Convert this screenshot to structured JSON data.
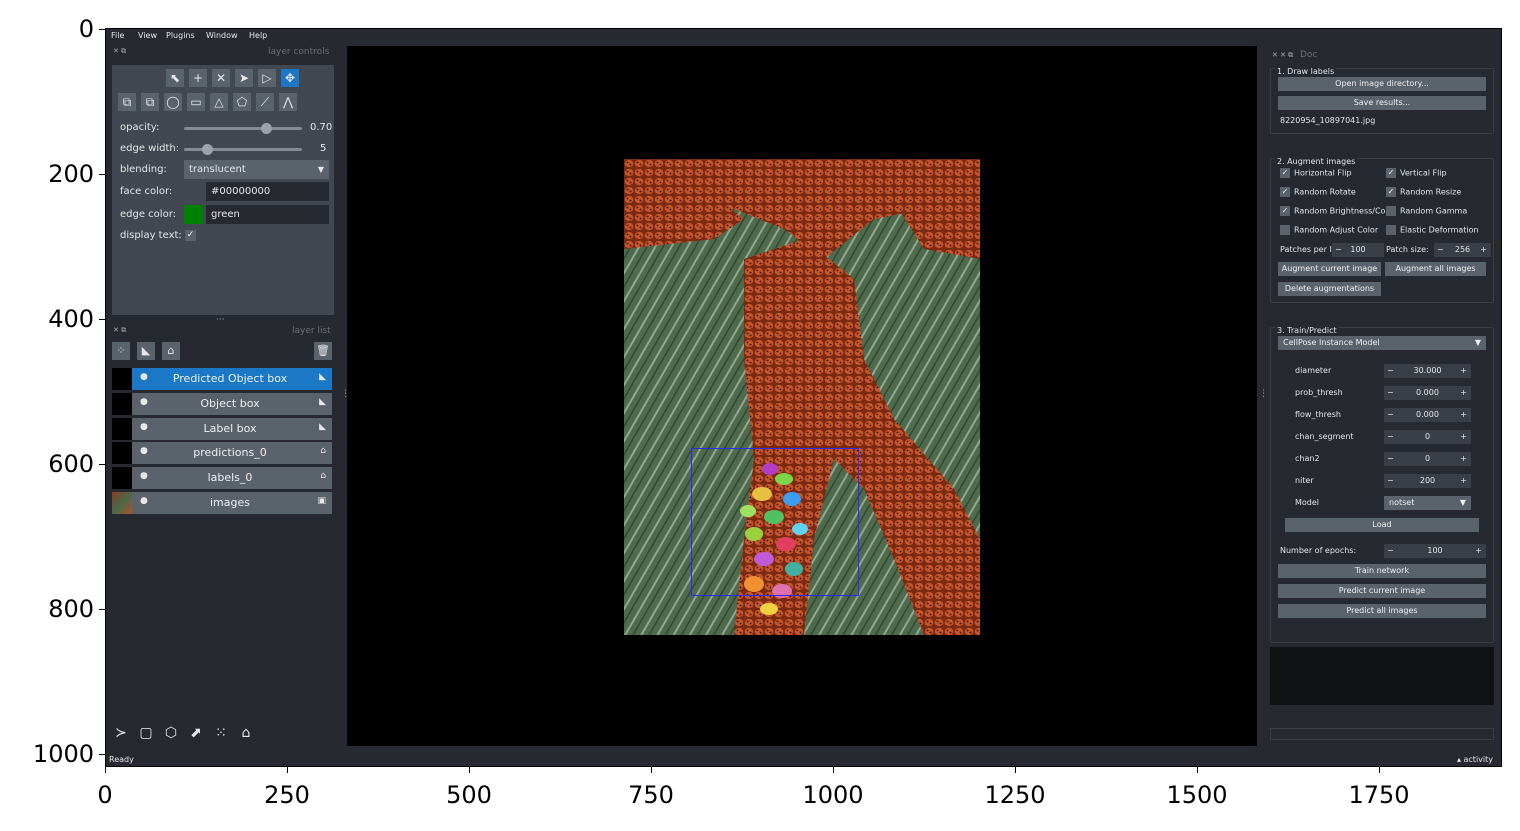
{
  "plot_axes": {
    "x_ticks": [
      "0",
      "250",
      "500",
      "750",
      "1000",
      "1250",
      "1500",
      "1750"
    ],
    "y_ticks": [
      "0",
      "200",
      "400",
      "600",
      "800",
      "1000"
    ]
  },
  "menu": [
    "File",
    "View",
    "Plugins",
    "Window",
    "Help"
  ],
  "left_dock": {
    "controls_title": "layer controls",
    "list_title": "layer list",
    "opacity_label": "opacity:",
    "opacity_value": "0.70",
    "opacity_fraction": 0.7,
    "edge_width_label": "edge width:",
    "edge_width_value": "5",
    "edge_width_fraction": 0.2,
    "blending_label": "blending:",
    "blending_value": "translucent",
    "face_color_label": "face color:",
    "face_color_value": "#00000000",
    "edge_color_label": "edge color:",
    "edge_color_value": "green",
    "edge_color_swatch": "#008000",
    "display_text_label": "display text:",
    "tools_row1": [
      "select-vertices-icon",
      "add-vertex-icon",
      "delete-shape-icon",
      "select-icon",
      "direct-select-icon",
      "move-icon"
    ],
    "tools_row2": [
      "move-back-icon",
      "move-front-icon",
      "ellipse-icon",
      "rectangle-icon",
      "triangle-icon",
      "polygon-icon",
      "line-icon",
      "path-icon"
    ],
    "layers": [
      {
        "name": "Predicted Object box",
        "type": "shapes",
        "selected": true
      },
      {
        "name": "Object box",
        "type": "shapes",
        "selected": false
      },
      {
        "name": "Label box",
        "type": "shapes",
        "selected": false
      },
      {
        "name": "predictions_0",
        "type": "labels",
        "selected": false
      },
      {
        "name": "labels_0",
        "type": "labels",
        "selected": false
      },
      {
        "name": "images",
        "type": "image",
        "selected": false
      }
    ]
  },
  "status": {
    "left": "Ready",
    "right": "activity"
  },
  "right_dock": {
    "title": "Doc",
    "g1_title": "1. Draw labels",
    "open_dir": "Open image directory...",
    "save_results": "Save results...",
    "filename": "8220954_10897041.jpg",
    "g2_title": "2. Augment images",
    "aug_options": [
      {
        "label": "Horizontal Flip",
        "checked": true
      },
      {
        "label": "Vertical Flip",
        "checked": true
      },
      {
        "label": "Random Rotate",
        "checked": true
      },
      {
        "label": "Random Resize",
        "checked": true
      },
      {
        "label": "Random Brightness/Con",
        "checked": true
      },
      {
        "label": "Random Gamma",
        "checked": false
      },
      {
        "label": "Random Adjust Color",
        "checked": false
      },
      {
        "label": "Elastic Deformation",
        "checked": false
      }
    ],
    "patches_label": "Patches per I",
    "patches_value": "100",
    "patch_size_label": "Patch size:",
    "patch_size_value": "256",
    "aug_current": "Augment current image",
    "aug_all": "Augment all images",
    "delete_aug": "Delete augmentations",
    "g3_title": "3. Train/Predict",
    "model_select": "CellPose Instance Model",
    "params": [
      {
        "label": "diameter",
        "value": "30.000"
      },
      {
        "label": "prob_thresh",
        "value": "0.000"
      },
      {
        "label": "flow_thresh",
        "value": "0.000"
      },
      {
        "label": "chan_segment",
        "value": "0"
      },
      {
        "label": "chan2",
        "value": "0"
      },
      {
        "label": "niter",
        "value": "200"
      }
    ],
    "model_label": "Model",
    "model_value": "notset",
    "load": "Load",
    "epochs_label": "Number of epochs:",
    "epochs_value": "100",
    "train": "Train network",
    "predict_current": "Predict current image",
    "predict_all": "Predict all images"
  }
}
